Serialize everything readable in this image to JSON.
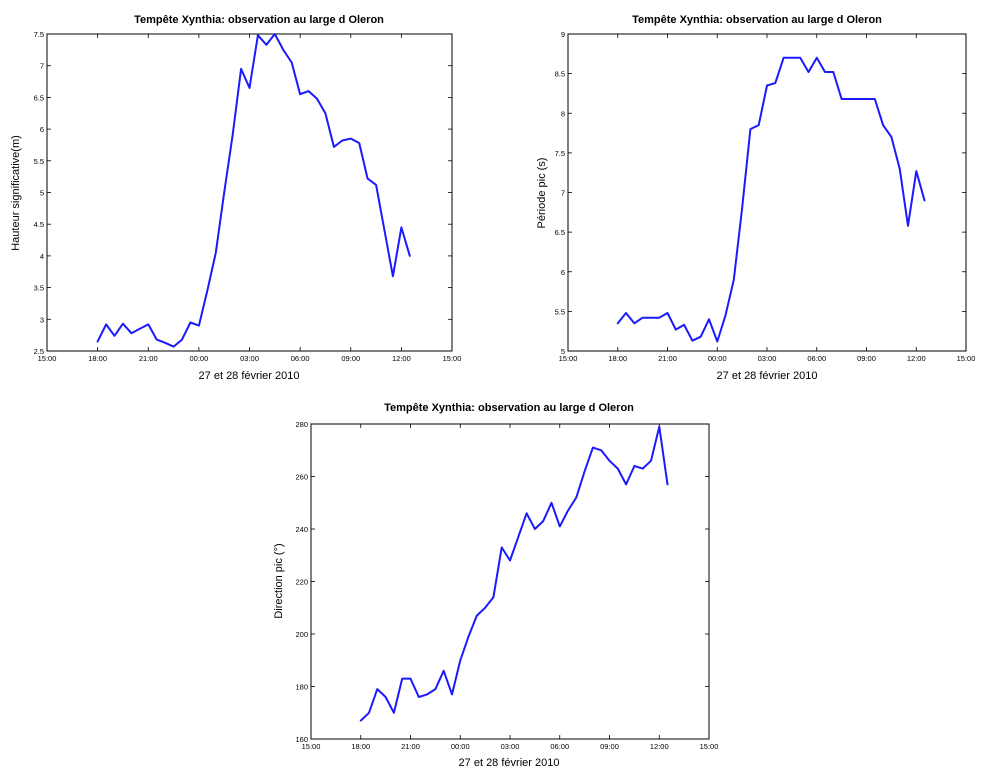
{
  "colors": {
    "line": "#1a1aff",
    "axes": "#000000",
    "background": "#ffffff"
  },
  "chart_data": [
    {
      "type": "line",
      "title": "Tempête Xynthia: observation au large d Oleron",
      "xlabel": "27 et 28 février 2010",
      "ylabel": "Hauteur significative(m)",
      "xlim": [
        "27/02 15:00",
        "28/02 15:00"
      ],
      "xtick_labels": [
        "15:00",
        "18:00",
        "21:00",
        "00:00",
        "03:00",
        "06:00",
        "09:00",
        "12:00",
        "15:00"
      ],
      "ylim": [
        2.5,
        7.5
      ],
      "ytick_labels": [
        "2.5",
        "3",
        "3.5",
        "4",
        "4.5",
        "5",
        "5.5",
        "6",
        "6.5",
        "7",
        "7.5"
      ],
      "grid": false,
      "series": [
        {
          "x": [
            "27/02 18:00",
            "27/02 18:30",
            "27/02 19:00",
            "27/02 19:30",
            "27/02 20:00",
            "27/02 20:30",
            "27/02 21:00",
            "27/02 21:30",
            "27/02 22:00",
            "27/02 22:30",
            "27/02 23:00",
            "27/02 23:30",
            "28/02 00:00",
            "28/02 00:30",
            "28/02 01:00",
            "28/02 01:30",
            "28/02 02:00",
            "28/02 02:30",
            "28/02 03:00",
            "28/02 03:30",
            "28/02 04:00",
            "28/02 04:30",
            "28/02 05:00",
            "28/02 05:30",
            "28/02 06:00",
            "28/02 06:30",
            "28/02 07:00",
            "28/02 07:30",
            "28/02 08:00",
            "28/02 08:30",
            "28/02 09:00",
            "28/02 09:30",
            "28/02 10:00",
            "28/02 10:30",
            "28/02 11:00",
            "28/02 11:30",
            "28/02 12:00",
            "28/02 12:30"
          ],
          "y": [
            2.65,
            2.92,
            2.74,
            2.93,
            2.78,
            2.85,
            2.92,
            2.68,
            2.63,
            2.57,
            2.68,
            2.95,
            2.9,
            3.45,
            4.05,
            5.0,
            5.9,
            6.95,
            6.65,
            7.48,
            7.33,
            7.5,
            7.25,
            7.05,
            6.55,
            6.6,
            6.48,
            6.25,
            5.72,
            5.82,
            5.85,
            5.78,
            5.22,
            5.12,
            4.4,
            3.68,
            4.45,
            4.0
          ]
        }
      ]
    },
    {
      "type": "line",
      "title": "Tempête Xynthia: observation au large d Oleron",
      "xlabel": "27 et 28 février 2010",
      "ylabel": "Période pic (s)",
      "xlim": [
        "27/02 15:00",
        "28/02 15:00"
      ],
      "xtick_labels": [
        "15:00",
        "18:00",
        "21:00",
        "00:00",
        "03:00",
        "06:00",
        "09:00",
        "12:00",
        "15:00"
      ],
      "ylim": [
        5,
        9
      ],
      "ytick_labels": [
        "5",
        "5.5",
        "6",
        "6.5",
        "7",
        "7.5",
        "8",
        "8.5",
        "9"
      ],
      "grid": false,
      "series": [
        {
          "x": [
            "27/02 18:00",
            "27/02 18:30",
            "27/02 19:00",
            "27/02 19:30",
            "27/02 20:00",
            "27/02 20:30",
            "27/02 21:00",
            "27/02 21:30",
            "27/02 22:00",
            "27/02 22:30",
            "27/02 23:00",
            "27/02 23:30",
            "28/02 00:00",
            "28/02 00:30",
            "28/02 01:00",
            "28/02 01:30",
            "28/02 02:00",
            "28/02 02:30",
            "28/02 03:00",
            "28/02 03:30",
            "28/02 04:00",
            "28/02 04:30",
            "28/02 05:00",
            "28/02 05:30",
            "28/02 06:00",
            "28/02 06:30",
            "28/02 07:00",
            "28/02 07:30",
            "28/02 08:00",
            "28/02 08:30",
            "28/02 09:00",
            "28/02 09:30",
            "28/02 10:00",
            "28/02 10:30",
            "28/02 11:00",
            "28/02 11:30",
            "28/02 12:00",
            "28/02 12:30"
          ],
          "y": [
            5.35,
            5.48,
            5.35,
            5.42,
            5.42,
            5.42,
            5.48,
            5.27,
            5.33,
            5.13,
            5.18,
            5.4,
            5.12,
            5.45,
            5.9,
            6.8,
            7.8,
            7.85,
            8.35,
            8.38,
            8.7,
            8.7,
            8.7,
            8.52,
            8.7,
            8.52,
            8.52,
            8.18,
            8.18,
            8.18,
            8.18,
            8.18,
            7.85,
            7.7,
            7.3,
            6.58,
            7.27,
            6.9
          ]
        }
      ]
    },
    {
      "type": "line",
      "title": "Tempête Xynthia: observation au large d Oleron",
      "xlabel": "27 et 28 février 2010",
      "ylabel": "Direction pic (°)",
      "xlim": [
        "27/02 15:00",
        "28/02 15:00"
      ],
      "xtick_labels": [
        "15:00",
        "18:00",
        "21:00",
        "00:00",
        "03:00",
        "06:00",
        "09:00",
        "12:00",
        "15:00"
      ],
      "ylim": [
        160,
        280
      ],
      "ytick_labels": [
        "160",
        "180",
        "200",
        "220",
        "240",
        "260",
        "280"
      ],
      "grid": false,
      "series": [
        {
          "x": [
            "27/02 18:00",
            "27/02 18:30",
            "27/02 19:00",
            "27/02 19:30",
            "27/02 20:00",
            "27/02 20:30",
            "27/02 21:00",
            "27/02 21:30",
            "27/02 22:00",
            "27/02 22:30",
            "27/02 23:00",
            "27/02 23:30",
            "28/02 00:00",
            "28/02 00:30",
            "28/02 01:00",
            "28/02 01:30",
            "28/02 02:00",
            "28/02 02:30",
            "28/02 03:00",
            "28/02 03:30",
            "28/02 04:00",
            "28/02 04:30",
            "28/02 05:00",
            "28/02 05:30",
            "28/02 06:00",
            "28/02 06:30",
            "28/02 07:00",
            "28/02 07:30",
            "28/02 08:00",
            "28/02 08:30",
            "28/02 09:00",
            "28/02 09:30",
            "28/02 10:00",
            "28/02 10:30",
            "28/02 11:00",
            "28/02 11:30",
            "28/02 12:00",
            "28/02 12:30"
          ],
          "y": [
            167,
            170,
            179,
            176,
            170,
            183,
            183,
            176,
            177,
            179,
            186,
            177,
            190,
            199,
            207,
            210,
            214,
            233,
            228,
            237,
            246,
            240,
            243,
            250,
            241,
            247,
            252,
            262,
            271,
            270,
            266,
            263,
            257,
            264,
            263,
            266,
            279,
            257
          ]
        }
      ]
    }
  ]
}
